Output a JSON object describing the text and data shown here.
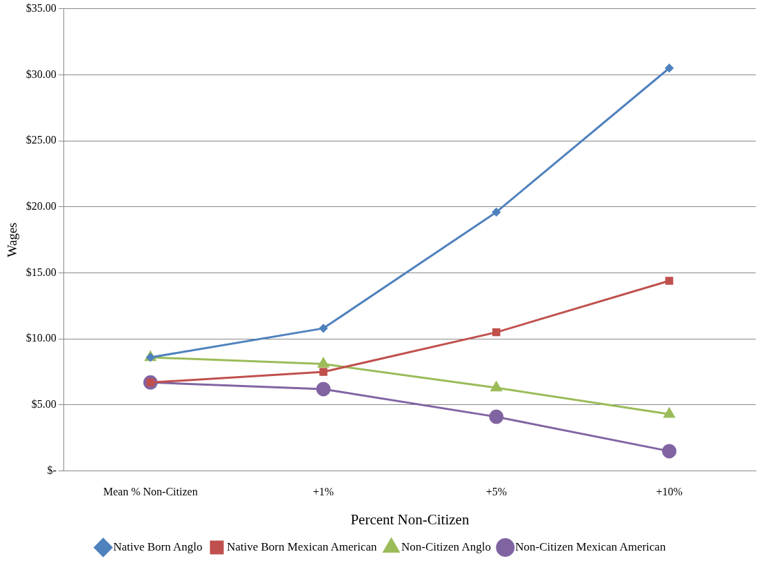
{
  "chart_data": {
    "type": "line",
    "xlabel": "Percent Non-Citizen",
    "ylabel": "Wages",
    "categories": [
      "Mean % Non-Citizen",
      "+1%",
      "+5%",
      "+10%"
    ],
    "series": [
      {
        "name": "Native Born Anglo",
        "color": "#4f81bd",
        "marker": "diamond",
        "values": [
          8.6,
          10.8,
          19.6,
          30.5
        ]
      },
      {
        "name": "Native Born Mexican American",
        "color": "#c0504d",
        "marker": "square",
        "values": [
          6.7,
          7.5,
          10.5,
          14.4
        ]
      },
      {
        "name": "Non-Citizen Anglo",
        "color": "#9bbb59",
        "marker": "triangle",
        "values": [
          8.6,
          8.1,
          6.3,
          4.3
        ]
      },
      {
        "name": "Non-Citizen Mexican American",
        "color": "#8064a2",
        "marker": "circle",
        "values": [
          6.7,
          6.2,
          4.1,
          1.5
        ]
      }
    ],
    "ylim": [
      0,
      35
    ],
    "yticks": [
      {
        "value": 0,
        "label": "$-"
      },
      {
        "value": 5,
        "label": "$5.00"
      },
      {
        "value": 10,
        "label": "$10.00"
      },
      {
        "value": 15,
        "label": "$15.00"
      },
      {
        "value": 20,
        "label": "$20.00"
      },
      {
        "value": 25,
        "label": "$25.00"
      },
      {
        "value": 30,
        "label": "$30.00"
      },
      {
        "value": 35,
        "label": "$35.00"
      }
    ],
    "grid": "y",
    "legend": "bottom",
    "line_style": "solid"
  }
}
